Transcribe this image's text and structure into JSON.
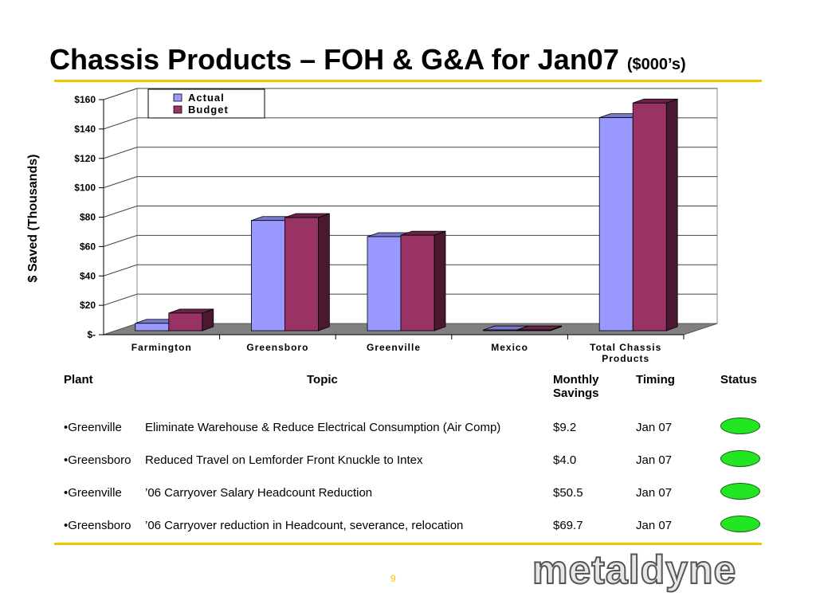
{
  "slide": {
    "title": "Chassis Products – FOH & G&A for Jan07",
    "title_unit": "($000’s)",
    "page_number": "9",
    "logo_text": "metaldyne",
    "accent_color": "#f5c400"
  },
  "chart_data": {
    "type": "bar",
    "categories": [
      "Farmington",
      "Greensboro",
      "Greenville",
      "Mexico",
      "Total Chassis Products"
    ],
    "category_lines": [
      [
        "Farmington"
      ],
      [
        "Greensboro"
      ],
      [
        "Greenville"
      ],
      [
        "Mexico"
      ],
      [
        "Total Chassis",
        "Products"
      ]
    ],
    "series": [
      {
        "name": "Actual",
        "values": [
          5,
          75,
          64,
          0.5,
          145
        ],
        "color": "#9999ff"
      },
      {
        "name": "Budget",
        "values": [
          12,
          77,
          65,
          0.5,
          155
        ],
        "color": "#993366"
      }
    ],
    "ylabel": "$ Saved (Thousands)",
    "ylim": [
      0,
      160
    ],
    "yticks": [
      0,
      20,
      40,
      60,
      80,
      100,
      120,
      140,
      160
    ],
    "ytick_labels": [
      "$-",
      "$20",
      "$40",
      "$60",
      "$80",
      "$100",
      "$120",
      "$140",
      "$160"
    ],
    "grid": true,
    "legend": "top-left"
  },
  "table": {
    "headers": {
      "plant": "Plant",
      "topic": "Topic",
      "monthly_line1": "Monthly",
      "monthly_line2": "Savings",
      "timing": "Timing",
      "status": "Status"
    },
    "rows": [
      {
        "plant": "•Greenville",
        "topic": "Eliminate Warehouse & Reduce Electrical Consumption (Air Comp)",
        "savings": "$9.2",
        "timing": "Jan 07",
        "status": "green"
      },
      {
        "plant": "•Greensboro",
        "topic": "Reduced Travel on Lemforder Front Knuckle to Intex",
        "savings": "$4.0",
        "timing": "Jan 07",
        "status": "green"
      },
      {
        "plant": "•Greenville",
        "topic": "’06 Carryover Salary Headcount Reduction",
        "savings": "$50.5",
        "timing": "Jan 07",
        "status": "green"
      },
      {
        "plant": "•Greensboro",
        "topic": "’06 Carryover reduction in Headcount, severance, relocation",
        "savings": "$69.7",
        "timing": "Jan 07",
        "status": "green"
      }
    ],
    "status_color": "#22e622"
  }
}
